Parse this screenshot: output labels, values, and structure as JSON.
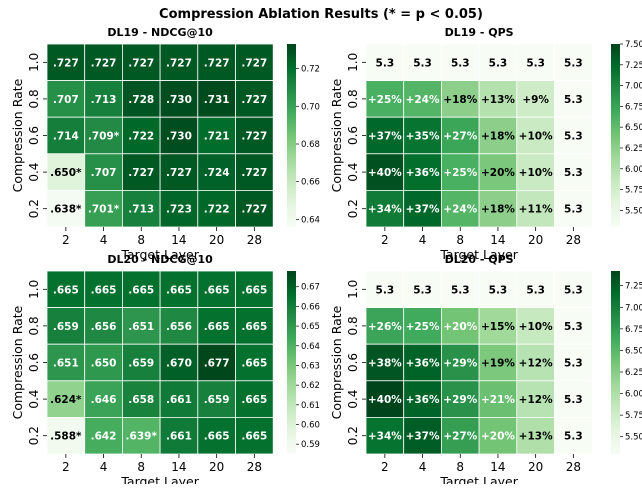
{
  "suptitle": "Compression Ablation Results (* = p < 0.05)",
  "chart_data": [
    {
      "type": "heatmap",
      "title": "DL19 - NDCG@10",
      "xlabel": "Target Layer",
      "ylabel": "Compression Rate",
      "x_categories": [
        "2",
        "4",
        "8",
        "14",
        "20",
        "28"
      ],
      "y_categories": [
        "1.0",
        "0.8",
        "0.6",
        "0.4",
        "0.2"
      ],
      "values": [
        [
          0.727,
          0.727,
          0.727,
          0.727,
          0.727,
          0.727
        ],
        [
          0.707,
          0.713,
          0.728,
          0.73,
          0.731,
          0.727
        ],
        [
          0.714,
          0.709,
          0.722,
          0.73,
          0.721,
          0.727
        ],
        [
          0.65,
          0.707,
          0.727,
          0.727,
          0.724,
          0.727
        ],
        [
          0.638,
          0.701,
          0.713,
          0.723,
          0.722,
          0.727
        ]
      ],
      "labels": [
        [
          ".727",
          ".727",
          ".727",
          ".727",
          ".727",
          ".727"
        ],
        [
          ".707",
          ".713",
          ".728",
          ".730",
          ".731",
          ".727"
        ],
        [
          ".714",
          ".709*",
          ".722",
          ".730",
          ".721",
          ".727"
        ],
        [
          ".650*",
          ".707",
          ".727",
          ".727",
          ".724",
          ".727"
        ],
        [
          ".638*",
          ".701*",
          ".713",
          ".723",
          ".722",
          ".727"
        ]
      ],
      "color_range": [
        0.636,
        0.733
      ],
      "colorbar_ticks": [
        "0.64",
        "0.66",
        "0.68",
        "0.70",
        "0.72"
      ]
    },
    {
      "type": "heatmap",
      "title": "DL19 - QPS",
      "xlabel": "Target Layer",
      "ylabel": "Compression Rate",
      "x_categories": [
        "2",
        "4",
        "8",
        "14",
        "20",
        "28"
      ],
      "y_categories": [
        "1.0",
        "0.8",
        "0.6",
        "0.4",
        "0.2"
      ],
      "values": [
        [
          5.3,
          5.3,
          5.3,
          5.3,
          5.3,
          5.3
        ],
        [
          6.63,
          6.57,
          6.25,
          5.99,
          5.78,
          5.3
        ],
        [
          7.26,
          7.16,
          6.73,
          6.25,
          5.83,
          5.3
        ],
        [
          7.42,
          7.21,
          6.63,
          6.36,
          5.83,
          5.3
        ],
        [
          7.1,
          7.26,
          6.57,
          6.25,
          5.88,
          5.3
        ]
      ],
      "labels": [
        [
          "5.3",
          "5.3",
          "5.3",
          "5.3",
          "5.3",
          "5.3"
        ],
        [
          "+25%",
          "+24%",
          "+18%",
          "+13%",
          "+9%",
          "5.3"
        ],
        [
          "+37%",
          "+35%",
          "+27%",
          "+18%",
          "+10%",
          "5.3"
        ],
        [
          "+40%",
          "+36%",
          "+25%",
          "+20%",
          "+10%",
          "5.3"
        ],
        [
          "+34%",
          "+37%",
          "+24%",
          "+18%",
          "+11%",
          "5.3"
        ]
      ],
      "color_range": [
        5.3,
        7.5
      ],
      "colorbar_ticks": [
        "5.50",
        "5.75",
        "6.00",
        "6.25",
        "6.50",
        "6.75",
        "7.00",
        "7.25",
        "7.50"
      ]
    },
    {
      "type": "heatmap",
      "title": "DL20 - NDCG@10",
      "xlabel": "Target Layer",
      "ylabel": "Compression Rate",
      "x_categories": [
        "2",
        "4",
        "8",
        "14",
        "20",
        "28"
      ],
      "y_categories": [
        "1.0",
        "0.8",
        "0.6",
        "0.4",
        "0.2"
      ],
      "values": [
        [
          0.665,
          0.665,
          0.665,
          0.665,
          0.665,
          0.665
        ],
        [
          0.659,
          0.656,
          0.651,
          0.656,
          0.665,
          0.665
        ],
        [
          0.651,
          0.65,
          0.659,
          0.67,
          0.677,
          0.665
        ],
        [
          0.624,
          0.646,
          0.658,
          0.661,
          0.659,
          0.665
        ],
        [
          0.588,
          0.642,
          0.639,
          0.661,
          0.665,
          0.665
        ]
      ],
      "labels": [
        [
          ".665",
          ".665",
          ".665",
          ".665",
          ".665",
          ".665"
        ],
        [
          ".659",
          ".656",
          ".651",
          ".656",
          ".665",
          ".665"
        ],
        [
          ".651",
          ".650",
          ".659",
          ".670",
          ".677",
          ".665"
        ],
        [
          ".624*",
          ".646",
          ".658",
          ".661",
          ".659",
          ".665"
        ],
        [
          ".588*",
          ".642",
          ".639*",
          ".661",
          ".665",
          ".665"
        ]
      ],
      "color_range": [
        0.585,
        0.678
      ],
      "colorbar_ticks": [
        "0.59",
        "0.60",
        "0.61",
        "0.62",
        "0.63",
        "0.64",
        "0.65",
        "0.66",
        "0.67"
      ]
    },
    {
      "type": "heatmap",
      "title": "DL20 - QPS",
      "xlabel": "Target Layer",
      "ylabel": "Compression Rate",
      "x_categories": [
        "2",
        "4",
        "8",
        "14",
        "20",
        "28"
      ],
      "y_categories": [
        "1.0",
        "0.8",
        "0.6",
        "0.4",
        "0.2"
      ],
      "values": [
        [
          5.3,
          5.3,
          5.3,
          5.3,
          5.3,
          5.3
        ],
        [
          6.68,
          6.63,
          6.36,
          6.1,
          5.83,
          5.3
        ],
        [
          7.31,
          7.21,
          6.84,
          6.31,
          5.94,
          5.3
        ],
        [
          7.42,
          7.21,
          6.84,
          6.41,
          5.94,
          5.3
        ],
        [
          7.1,
          7.26,
          6.73,
          6.36,
          5.99,
          5.3
        ]
      ],
      "labels": [
        [
          "5.3",
          "5.3",
          "5.3",
          "5.3",
          "5.3",
          "5.3"
        ],
        [
          "+26%",
          "+25%",
          "+20%",
          "+15%",
          "+10%",
          "5.3"
        ],
        [
          "+38%",
          "+36%",
          "+29%",
          "+19%",
          "+12%",
          "5.3"
        ],
        [
          "+40%",
          "+36%",
          "+29%",
          "+21%",
          "+12%",
          "5.3"
        ],
        [
          "+34%",
          "+37%",
          "+27%",
          "+20%",
          "+13%",
          "5.3"
        ]
      ],
      "color_range": [
        5.3,
        7.42
      ],
      "colorbar_ticks": [
        "5.50",
        "5.75",
        "6.00",
        "6.25",
        "6.50",
        "6.75",
        "7.00",
        "7.25"
      ]
    }
  ]
}
